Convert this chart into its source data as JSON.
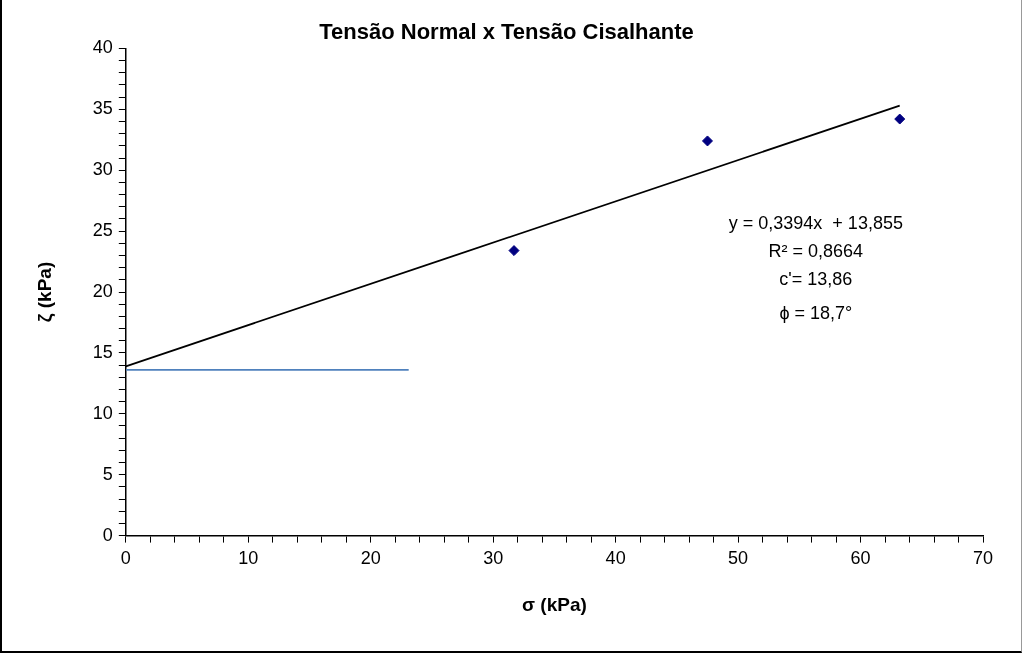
{
  "chart_data": {
    "type": "scatter",
    "title": "Tensão Normal x Tensão Cisalhante",
    "xlabel": "σ (kPa)",
    "ylabel": "ζ (kPa)",
    "xlim": [
      0,
      70
    ],
    "ylim": [
      0,
      40
    ],
    "xticks": [
      0,
      {
        "value": 2,
        "label": null
      },
      {
        "value": 4,
        "label": null
      },
      {
        "value": 6,
        "label": null
      },
      {
        "value": 8,
        "label": null
      },
      10,
      {
        "value": 12,
        "label": null
      },
      {
        "value": 14,
        "label": null
      },
      {
        "value": 16,
        "label": null
      },
      {
        "value": 18,
        "label": null
      },
      20,
      {
        "value": 22,
        "label": null
      },
      {
        "value": 24,
        "label": null
      },
      {
        "value": 26,
        "label": null
      },
      {
        "value": 28,
        "label": null
      },
      30,
      {
        "value": 32,
        "label": null
      },
      {
        "value": 34,
        "label": null
      },
      {
        "value": 36,
        "label": null
      },
      {
        "value": 38,
        "label": null
      },
      40,
      {
        "value": 42,
        "label": null
      },
      {
        "value": 44,
        "label": null
      },
      {
        "value": 46,
        "label": null
      },
      {
        "value": 48,
        "label": null
      },
      50,
      {
        "value": 52,
        "label": null
      },
      {
        "value": 54,
        "label": null
      },
      {
        "value": 56,
        "label": null
      },
      {
        "value": 58,
        "label": null
      },
      60,
      {
        "value": 62,
        "label": null
      },
      {
        "value": 64,
        "label": null
      },
      {
        "value": 66,
        "label": null
      },
      {
        "value": 68,
        "label": null
      },
      70
    ],
    "yticks": [
      0,
      {
        "value": 1,
        "label": null
      },
      {
        "value": 2,
        "label": null
      },
      {
        "value": 3,
        "label": null
      },
      {
        "value": 4,
        "label": null
      },
      5,
      {
        "value": 6,
        "label": null
      },
      {
        "value": 7,
        "label": null
      },
      {
        "value": 8,
        "label": null
      },
      {
        "value": 9,
        "label": null
      },
      10,
      {
        "value": 11,
        "label": null
      },
      {
        "value": 12,
        "label": null
      },
      {
        "value": 13,
        "label": null
      },
      {
        "value": 14,
        "label": null
      },
      15,
      {
        "value": 16,
        "label": null
      },
      {
        "value": 17,
        "label": null
      },
      {
        "value": 18,
        "label": null
      },
      {
        "value": 19,
        "label": null
      },
      20,
      {
        "value": 21,
        "label": null
      },
      {
        "value": 22,
        "label": null
      },
      {
        "value": 23,
        "label": null
      },
      {
        "value": 24,
        "label": null
      },
      25,
      {
        "value": 26,
        "label": null
      },
      {
        "value": 27,
        "label": null
      },
      {
        "value": 28,
        "label": null
      },
      {
        "value": 29,
        "label": null
      },
      30,
      {
        "value": 31,
        "label": null
      },
      {
        "value": 32,
        "label": null
      },
      {
        "value": 33,
        "label": null
      },
      {
        "value": 34,
        "label": null
      },
      35,
      {
        "value": 36,
        "label": null
      },
      {
        "value": 37,
        "label": null
      },
      {
        "value": 38,
        "label": null
      },
      {
        "value": 39,
        "label": null
      },
      40
    ],
    "grid": false,
    "legend": false,
    "series": [
      {
        "color": "#000080",
        "marker": "diamond",
        "x": [
          31.7,
          47.5,
          63.2
        ],
        "values": [
          23.4,
          32.4,
          34.2
        ]
      },
      {
        "type": "line",
        "color": "#000000",
        "marker": "none",
        "x": [
          0,
          63.2
        ],
        "values": [
          13.9,
          35.3
        ]
      },
      {
        "type": "line",
        "color": "#4f81bd",
        "marker": "none",
        "x": [
          0,
          23.1
        ],
        "values": [
          13.6,
          13.6
        ]
      }
    ],
    "annotations": [
      "y = 0,3394x  + 13,855",
      "R² = 0,8664",
      "c'= 13,86",
      "ϕ = 18,7°"
    ]
  }
}
